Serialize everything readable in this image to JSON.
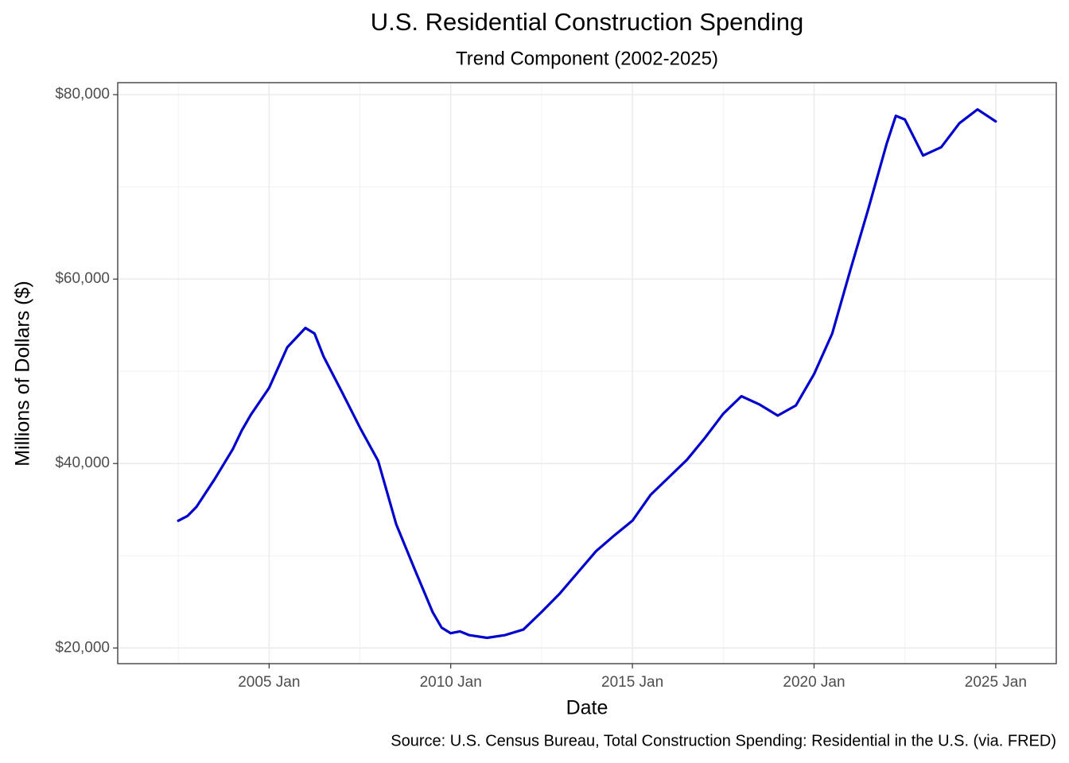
{
  "chart_data": {
    "type": "line",
    "title": "U.S. Residential Construction Spending",
    "subtitle": "Trend Component (2002-2025)",
    "x_label": "Date",
    "y_label": "Millions of Dollars ($)",
    "caption": "Source: U.S. Census Bureau, Total Construction Spending: Residential in the U.S. (via. FRED)",
    "x": [
      "2002-07",
      "2002-10",
      "2003-01",
      "2003-07",
      "2004-01",
      "2004-04",
      "2004-07",
      "2005-01",
      "2005-07",
      "2006-01",
      "2006-04",
      "2006-07",
      "2007-01",
      "2007-07",
      "2008-01",
      "2008-07",
      "2009-01",
      "2009-07",
      "2009-10",
      "2010-01",
      "2010-04",
      "2010-07",
      "2011-01",
      "2011-07",
      "2012-01",
      "2012-07",
      "2013-01",
      "2013-07",
      "2014-01",
      "2014-07",
      "2015-01",
      "2015-07",
      "2016-01",
      "2016-07",
      "2017-01",
      "2017-07",
      "2018-01",
      "2018-07",
      "2019-01",
      "2019-07",
      "2020-01",
      "2020-07",
      "2021-01",
      "2021-07",
      "2022-01",
      "2022-04",
      "2022-07",
      "2023-01",
      "2023-07",
      "2024-01",
      "2024-07",
      "2025-01"
    ],
    "series": [
      {
        "name": "Trend",
        "color": "#0000cd",
        "values": [
          33800,
          34300,
          35300,
          38300,
          41550,
          43600,
          45300,
          48200,
          52600,
          54700,
          54100,
          51600,
          47800,
          43900,
          40300,
          33400,
          28600,
          23900,
          22200,
          21600,
          21800,
          21400,
          21100,
          21400,
          22000,
          23900,
          25900,
          28200,
          30500,
          32200,
          33800,
          36600,
          38500,
          40400,
          42800,
          45400,
          47300,
          46400,
          45200,
          46300,
          49700,
          54100,
          61000,
          67700,
          74700,
          77700,
          77300,
          73400,
          74300,
          76900,
          78400,
          77100
        ]
      }
    ],
    "xlim": [
      "2000-11",
      "2026-09"
    ],
    "xticks": [
      {
        "value": "2005-01",
        "label": "2005 Jan"
      },
      {
        "value": "2010-01",
        "label": "2010 Jan"
      },
      {
        "value": "2015-01",
        "label": "2015 Jan"
      },
      {
        "value": "2020-01",
        "label": "2020 Jan"
      },
      {
        "value": "2025-01",
        "label": "2025 Jan"
      }
    ],
    "x_minor_ticks": [
      "2002-07",
      "2007-07",
      "2012-07",
      "2017-07",
      "2022-07"
    ],
    "ylim": [
      18300,
      81300
    ],
    "yticks": [
      {
        "value": 20000,
        "label": "$20,000"
      },
      {
        "value": 40000,
        "label": "$40,000"
      },
      {
        "value": 60000,
        "label": "$60,000"
      },
      {
        "value": 80000,
        "label": "$80,000"
      }
    ],
    "y_minor_ticks": [
      30000,
      50000,
      70000
    ],
    "grid": true
  }
}
